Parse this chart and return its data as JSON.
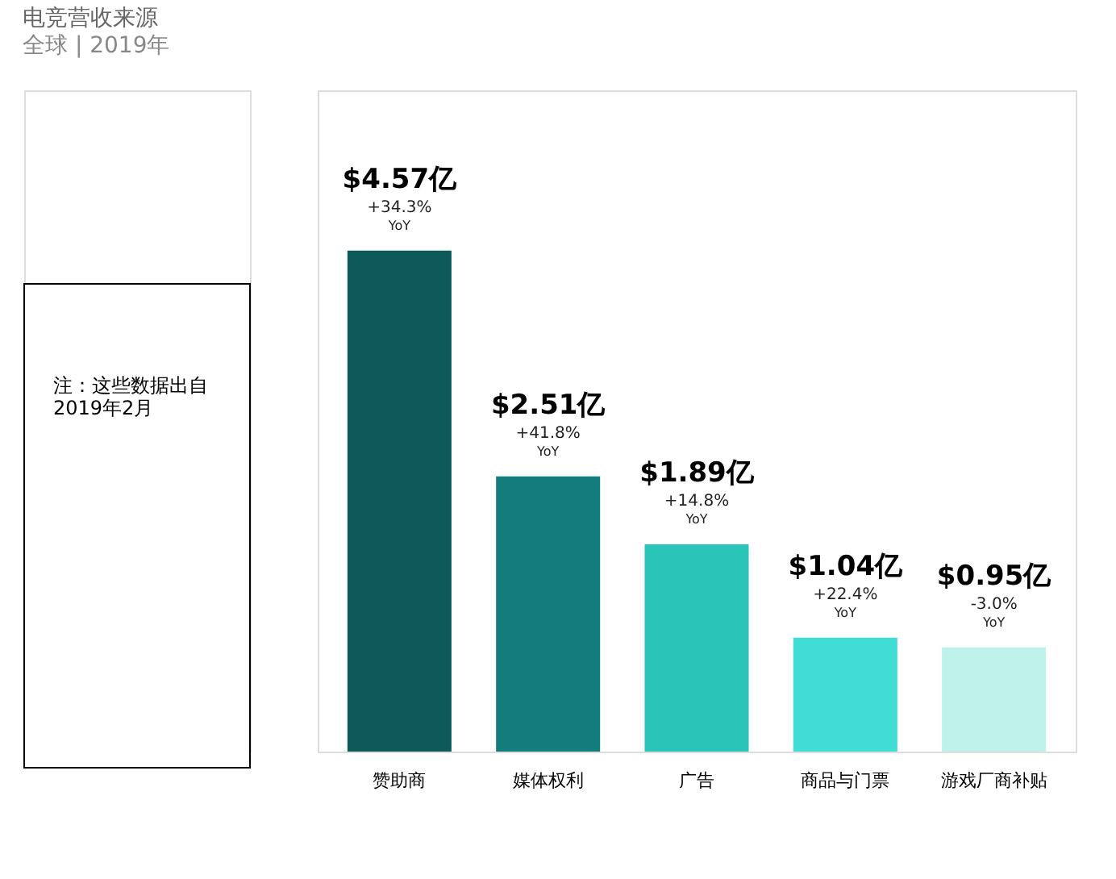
{
  "chart_data": {
    "type": "bar",
    "title": "电竞营收来源",
    "subtitle": "全球 | 2019年",
    "categories": [
      "赞助商",
      "媒体权利",
      "广告",
      "商品与门票",
      "游戏厂商补贴"
    ],
    "values": [
      4.57,
      2.51,
      1.89,
      1.04,
      0.95
    ],
    "colors": [
      "#0d5a58",
      "#147d7b",
      "#2bc4b8",
      "#40ddd4",
      "#c0f2ec"
    ],
    "value_labels": [
      "$4.57亿",
      "$2.51亿",
      "$1.89亿",
      "$1.04亿",
      "$0.95亿"
    ],
    "annotations": [
      {
        "text": "+34.3%",
        "x": "赞助商",
        "y": 4.57
      },
      {
        "text": "YoY",
        "x": "赞助商",
        "y": 4.57
      },
      {
        "text": "+41.8%",
        "x": "媒体权利",
        "y": 2.51
      },
      {
        "text": "YoY",
        "x": "媒体权利",
        "y": 2.51
      },
      {
        "text": "+14.8%",
        "x": "广告",
        "y": 1.89
      },
      {
        "text": "YoY",
        "x": "广告",
        "y": 1.89
      },
      {
        "text": "+22.4%",
        "x": "商品与门票",
        "y": 1.04
      },
      {
        "text": "YoY",
        "x": "商品与门票",
        "y": 1.04
      },
      {
        "text": "-3.0%",
        "x": "游戏厂商补贴",
        "y": 0.95
      },
      {
        "text": "YoY",
        "x": "游戏厂商补贴",
        "y": 0.95
      },
      "注：这些数据出自2019年2月"
    ]
  }
}
